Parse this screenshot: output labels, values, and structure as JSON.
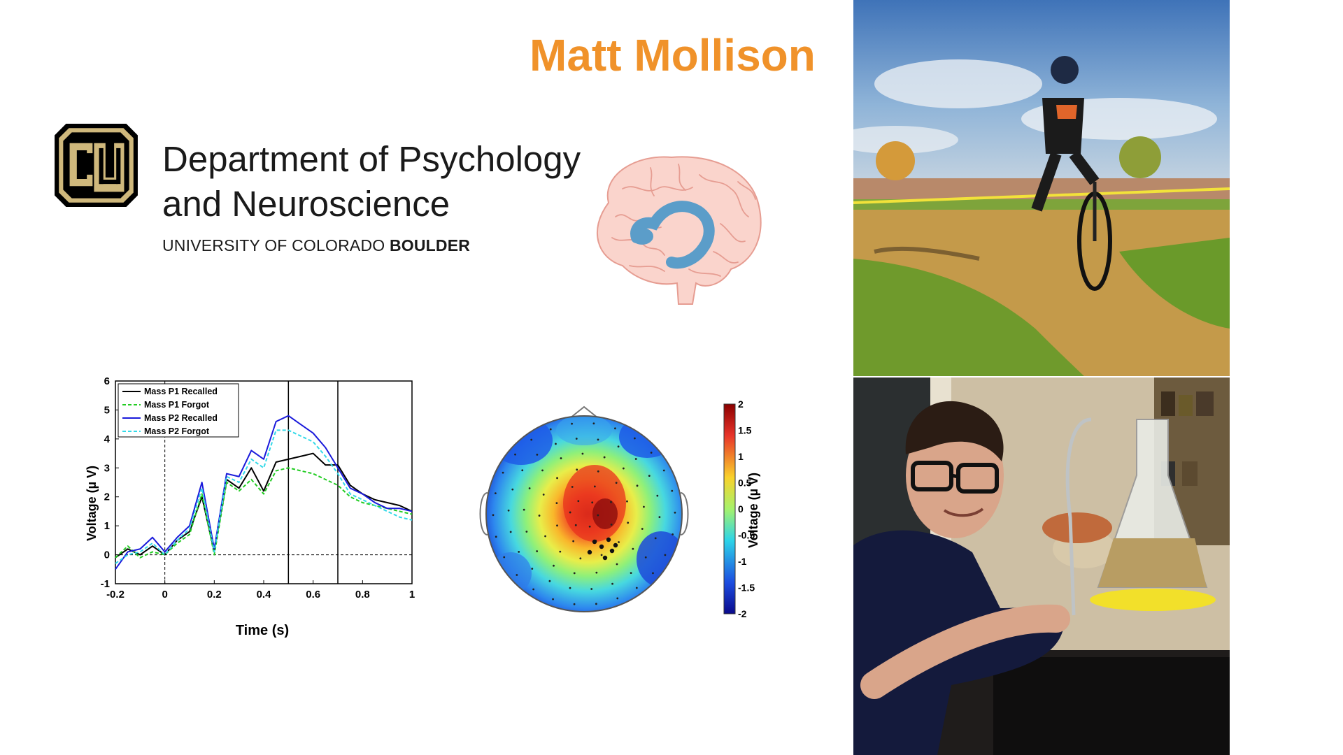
{
  "slide": {
    "title": "Matt Mollison",
    "department": {
      "line1": "Department of Psychology",
      "line2": "and Neuroscience",
      "university_prefix": "UNIVERSITY OF COLORADO ",
      "university_bold": "BOULDER"
    },
    "logo_letters": "CU",
    "brain_icon": "brain-hippocampus-icon",
    "accent_color": "#f0922a"
  },
  "chart_data": [
    {
      "type": "line",
      "xlabel": "Time (s)",
      "ylabel": "Voltage (µ V)",
      "xlim": [
        -0.2,
        1
      ],
      "ylim": [
        -1,
        6
      ],
      "xticks": [
        "-0.2",
        "0",
        "0.2",
        "0.4",
        "0.6",
        "0.8",
        "1"
      ],
      "yticks": [
        "-1",
        "0",
        "1",
        "2",
        "3",
        "4",
        "5",
        "6"
      ],
      "vlines": [
        0.5,
        0.7
      ],
      "legend_position": "top-left",
      "legend": [
        "Mass P1 Recalled",
        "Mass P1 Forgot",
        "Mass P2 Recalled",
        "Mass P2 Forgot"
      ],
      "x": [
        -0.2,
        -0.15,
        -0.1,
        -0.05,
        0,
        0.05,
        0.1,
        0.15,
        0.2,
        0.25,
        0.3,
        0.35,
        0.4,
        0.45,
        0.5,
        0.55,
        0.6,
        0.65,
        0.7,
        0.75,
        0.8,
        0.85,
        0.9,
        0.95,
        1.0
      ],
      "series": [
        {
          "name": "Mass P1 Recalled",
          "color": "#000000",
          "dash": false,
          "values": [
            -0.1,
            0.2,
            0.0,
            0.3,
            0.0,
            0.5,
            0.8,
            2.0,
            0.1,
            2.6,
            2.3,
            3.0,
            2.2,
            3.2,
            3.3,
            3.4,
            3.5,
            3.1,
            3.1,
            2.4,
            2.1,
            1.9,
            1.8,
            1.7,
            1.5
          ]
        },
        {
          "name": "Mass P1 Forgot",
          "color": "#22cc22",
          "dash": true,
          "values": [
            -0.1,
            0.3,
            -0.1,
            0.1,
            0.0,
            0.4,
            0.7,
            2.1,
            0.0,
            2.5,
            2.2,
            2.6,
            2.1,
            2.9,
            3.0,
            2.9,
            2.8,
            2.6,
            2.4,
            2.0,
            1.8,
            1.7,
            1.6,
            1.5,
            1.4
          ]
        },
        {
          "name": "Mass P2 Recalled",
          "color": "#1a1adb",
          "dash": false,
          "values": [
            -0.5,
            0.1,
            0.2,
            0.6,
            0.1,
            0.6,
            1.0,
            2.5,
            0.2,
            2.8,
            2.7,
            3.6,
            3.3,
            4.6,
            4.8,
            4.5,
            4.2,
            3.7,
            3.0,
            2.3,
            2.1,
            1.8,
            1.6,
            1.6,
            1.5
          ]
        },
        {
          "name": "Mass P2 Forgot",
          "color": "#33d9e8",
          "dash": true,
          "values": [
            -0.3,
            0.0,
            0.1,
            0.4,
            0.0,
            0.5,
            0.9,
            2.3,
            0.1,
            2.7,
            2.5,
            3.3,
            3.0,
            4.3,
            4.3,
            4.1,
            3.9,
            3.4,
            2.8,
            2.1,
            1.9,
            1.7,
            1.5,
            1.3,
            1.2
          ]
        }
      ]
    },
    {
      "type": "heatmap",
      "colorbar_label": "Voltage (µ V)",
      "colorbar_ticks": [
        "2",
        "1.5",
        "1",
        "0.5",
        "0",
        "-0.5",
        "-1",
        "-1.5",
        "-2"
      ],
      "range": [
        -2,
        2
      ]
    }
  ]
}
